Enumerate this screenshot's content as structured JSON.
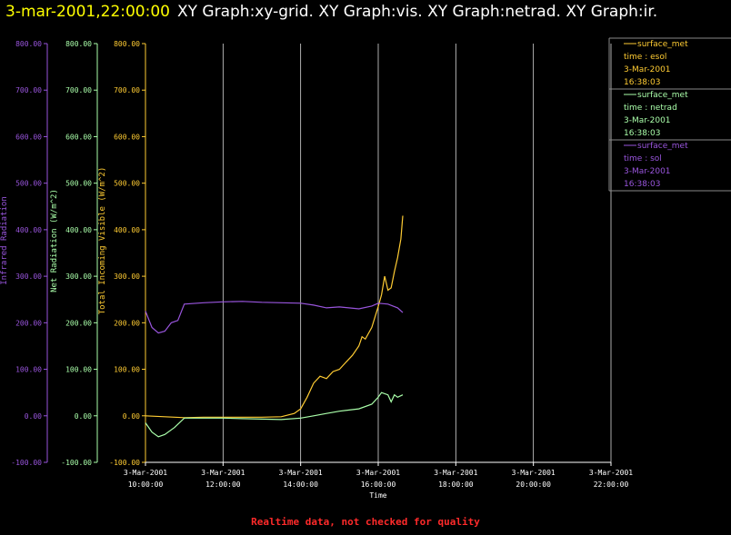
{
  "header": {
    "datetime": "3-mar-2001,22:00:00",
    "graphs": "XY Graph:xy-grid.  XY Graph:vis.  XY Graph:netrad.  XY Graph:ir."
  },
  "footer": {
    "notice": "Realtime data, not checked for quality"
  },
  "colors": {
    "background": "#000000",
    "visible": "#ffcc33",
    "netrad": "#aaffaa",
    "infrared": "#9955dd",
    "grid": "#ffffff",
    "notice": "#ff2a2a"
  },
  "chart_data": {
    "type": "line",
    "xlabel": "Time",
    "x_ticks": [
      {
        "date": "3-Mar-2001",
        "time": "10:00:00"
      },
      {
        "date": "3-Mar-2001",
        "time": "12:00:00"
      },
      {
        "date": "3-Mar-2001",
        "time": "14:00:00"
      },
      {
        "date": "3-Mar-2001",
        "time": "16:00:00"
      },
      {
        "date": "3-Mar-2001",
        "time": "18:00:00"
      },
      {
        "date": "3-Mar-2001",
        "time": "20:00:00"
      },
      {
        "date": "3-Mar-2001",
        "time": "22:00:00"
      }
    ],
    "xlim": [
      "3-Mar-2001 10:00:00",
      "3-Mar-2001 22:00:00"
    ],
    "grid": "vertical",
    "y_axes": [
      {
        "label": "Infrared Radiation",
        "color": "#9955dd",
        "ylim": [
          -100,
          800
        ],
        "ticks": [
          "-100.00",
          "0.00",
          "100.00",
          "200.00",
          "300.00",
          "400.00",
          "500.00",
          "600.00",
          "700.00",
          "800.00"
        ]
      },
      {
        "label": "Net Radiation (W/m^2)",
        "color": "#aaffaa",
        "ylim": [
          -100,
          800
        ],
        "ticks": [
          "-100.00",
          "0.00",
          "100.00",
          "200.00",
          "300.00",
          "400.00",
          "500.00",
          "600.00",
          "700.00",
          "800.00"
        ]
      },
      {
        "label": "Total Incoming Visible (W/m^2)",
        "color": "#ffcc33",
        "ylim": [
          -100,
          800
        ],
        "ticks": [
          "-100.00",
          "0.00",
          "100.00",
          "200.00",
          "300.00",
          "400.00",
          "500.00",
          "600.00",
          "700.00",
          "800.00"
        ]
      }
    ],
    "legend": [
      {
        "name": "surface_met",
        "field": "time : esol",
        "date": "3-Mar-2001",
        "time": "16:38:03",
        "color": "#ffcc33"
      },
      {
        "name": "surface_met",
        "field": "time : netrad",
        "date": "3-Mar-2001",
        "time": "16:38:03",
        "color": "#aaffaa"
      },
      {
        "name": "surface_met",
        "field": "time : sol",
        "date": "3-Mar-2001",
        "time": "16:38:03",
        "color": "#9955dd"
      }
    ],
    "legend_position": "right",
    "series": [
      {
        "name": "time : esol",
        "color": "#ffcc33",
        "points": [
          [
            "10:00",
            0
          ],
          [
            "10:30",
            -2
          ],
          [
            "11:00",
            -4
          ],
          [
            "11:30",
            -3
          ],
          [
            "12:00",
            -3
          ],
          [
            "12:30",
            -3
          ],
          [
            "13:00",
            -3
          ],
          [
            "13:30",
            -2
          ],
          [
            "13:50",
            5
          ],
          [
            "14:00",
            15
          ],
          [
            "14:10",
            40
          ],
          [
            "14:20",
            70
          ],
          [
            "14:30",
            85
          ],
          [
            "14:40",
            80
          ],
          [
            "14:50",
            95
          ],
          [
            "15:00",
            100
          ],
          [
            "15:10",
            115
          ],
          [
            "15:20",
            130
          ],
          [
            "15:30",
            150
          ],
          [
            "15:35",
            170
          ],
          [
            "15:40",
            165
          ],
          [
            "15:50",
            190
          ],
          [
            "16:00",
            235
          ],
          [
            "16:05",
            260
          ],
          [
            "16:10",
            300
          ],
          [
            "16:15",
            270
          ],
          [
            "16:20",
            275
          ],
          [
            "16:25",
            310
          ],
          [
            "16:30",
            340
          ],
          [
            "16:35",
            380
          ],
          [
            "16:38",
            430
          ]
        ]
      },
      {
        "name": "time : netrad",
        "color": "#aaffaa",
        "points": [
          [
            "10:00",
            -15
          ],
          [
            "10:10",
            -35
          ],
          [
            "10:20",
            -45
          ],
          [
            "10:30",
            -40
          ],
          [
            "10:45",
            -25
          ],
          [
            "11:00",
            -5
          ],
          [
            "11:30",
            -5
          ],
          [
            "12:00",
            -5
          ],
          [
            "12:30",
            -6
          ],
          [
            "13:00",
            -7
          ],
          [
            "13:30",
            -8
          ],
          [
            "14:00",
            -5
          ],
          [
            "14:20",
            0
          ],
          [
            "14:40",
            5
          ],
          [
            "15:00",
            10
          ],
          [
            "15:30",
            15
          ],
          [
            "15:50",
            25
          ],
          [
            "16:00",
            40
          ],
          [
            "16:05",
            50
          ],
          [
            "16:15",
            45
          ],
          [
            "16:20",
            30
          ],
          [
            "16:25",
            45
          ],
          [
            "16:30",
            40
          ],
          [
            "16:38",
            45
          ]
        ]
      },
      {
        "name": "time : sol",
        "color": "#9955dd",
        "points": [
          [
            "10:00",
            225
          ],
          [
            "10:10",
            190
          ],
          [
            "10:20",
            178
          ],
          [
            "10:30",
            182
          ],
          [
            "10:40",
            200
          ],
          [
            "10:50",
            205
          ],
          [
            "11:00",
            240
          ],
          [
            "11:30",
            243
          ],
          [
            "12:00",
            245
          ],
          [
            "12:30",
            246
          ],
          [
            "13:00",
            244
          ],
          [
            "13:30",
            243
          ],
          [
            "14:00",
            242
          ],
          [
            "14:20",
            238
          ],
          [
            "14:40",
            232
          ],
          [
            "15:00",
            234
          ],
          [
            "15:30",
            230
          ],
          [
            "15:50",
            236
          ],
          [
            "16:00",
            242
          ],
          [
            "16:15",
            240
          ],
          [
            "16:30",
            232
          ],
          [
            "16:38",
            222
          ]
        ]
      }
    ]
  }
}
